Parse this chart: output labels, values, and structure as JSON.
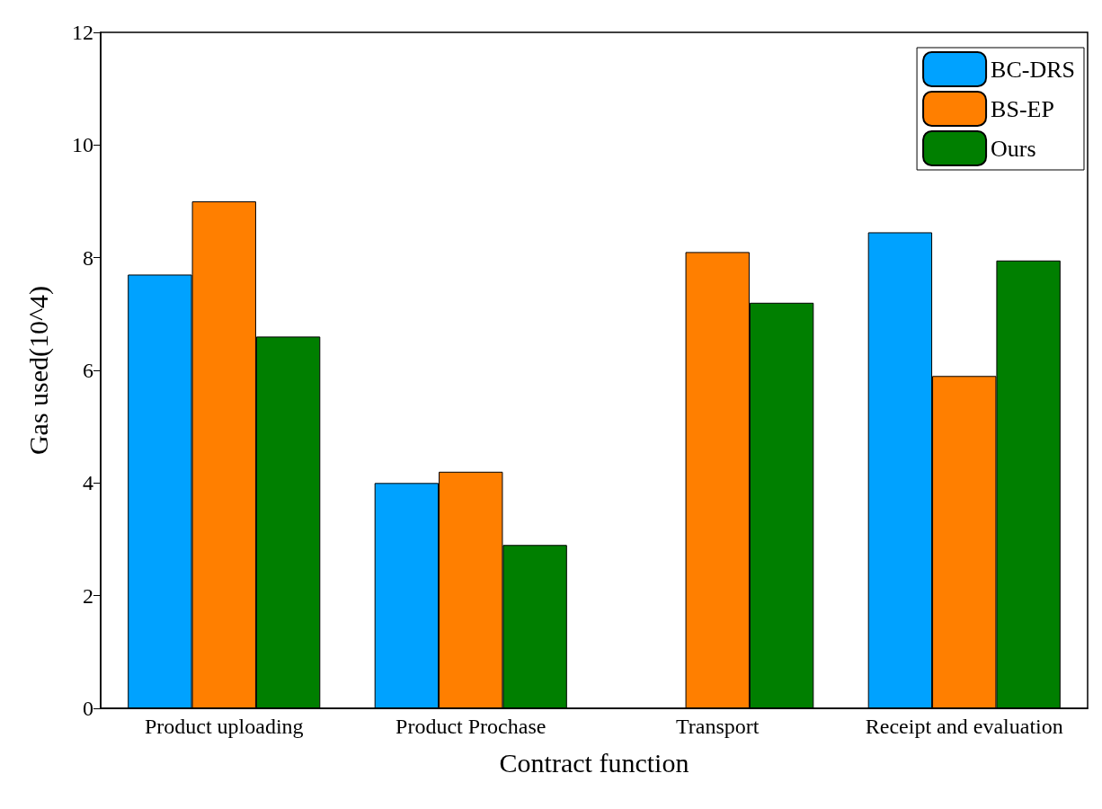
{
  "chart_data": {
    "type": "bar",
    "xlabel": "Contract function",
    "ylabel": "Gas used(10^4)",
    "categories": [
      "Product uploading",
      "Product Prochase",
      "Transport",
      "Receipt and evaluation"
    ],
    "series": [
      {
        "name": "BC-DRS",
        "color": "#00a2ff",
        "values": [
          7.7,
          4.0,
          null,
          8.45
        ]
      },
      {
        "name": "BS-EP",
        "color": "#ff7f00",
        "values": [
          9.0,
          4.2,
          8.1,
          5.9
        ]
      },
      {
        "name": "Ours",
        "color": "#007f00",
        "values": [
          6.6,
          2.9,
          7.2,
          7.95
        ]
      }
    ],
    "ylim": [
      0,
      12
    ],
    "yticks": [
      0,
      2,
      4,
      6,
      8,
      10,
      12
    ],
    "grid": false,
    "legend": "top right"
  }
}
